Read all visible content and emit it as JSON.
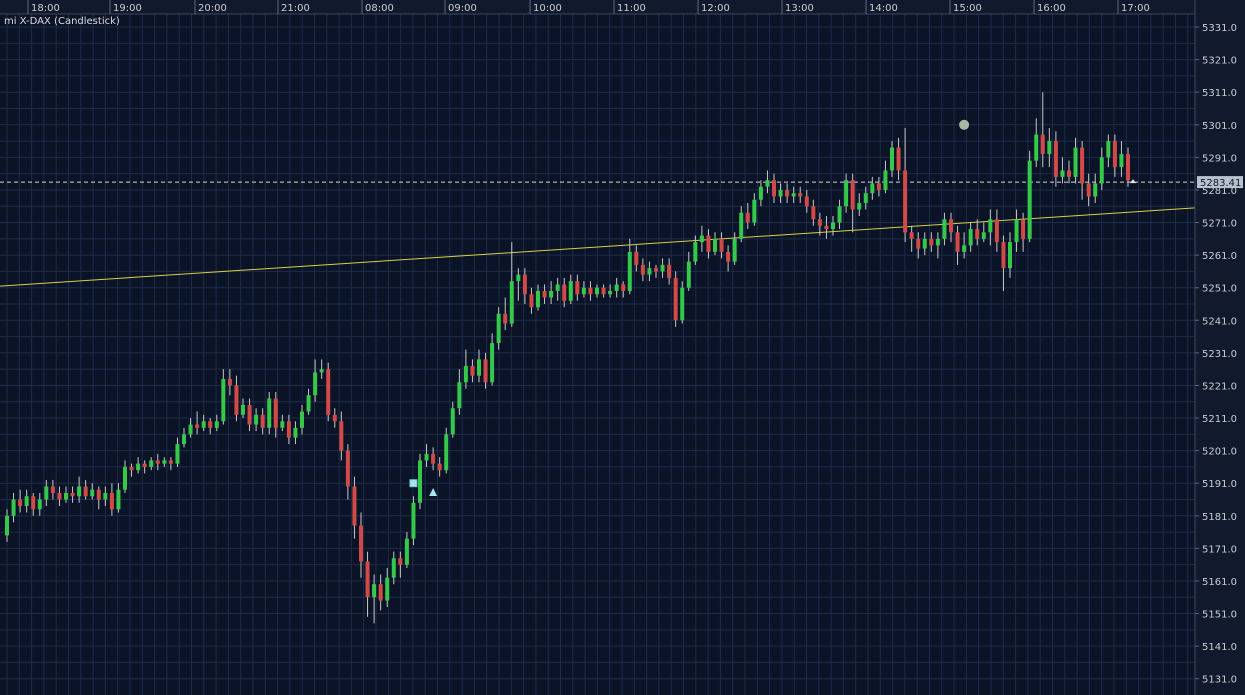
{
  "chart_title": "mi X-DAX (Candlestick)",
  "colors": {
    "background": "#0b1326",
    "grid": "#1d2c4b",
    "grid_major": "#22355a",
    "up": "#35c94a",
    "down": "#d24a47",
    "wick": "#c8c8c8",
    "trendline": "#d8d04a",
    "last_line": "#d8d8d8",
    "axis_bg": "#111a2d",
    "badge_bg": "#b7c3cf"
  },
  "chart_data": {
    "type": "candlestick",
    "symbol": "mi X-DAX",
    "time_ticks": [
      "18:00",
      "19:00",
      "20:00",
      "21:00",
      "08:00",
      "09:00",
      "10:00",
      "11:00",
      "12:00",
      "13:00",
      "14:00",
      "15:00",
      "16:00",
      "17:00"
    ],
    "price_ticks": [
      5331.0,
      5321.0,
      5311.0,
      5301.0,
      5291.0,
      5281.0,
      5271.0,
      5261.0,
      5251.0,
      5241.0,
      5231.0,
      5221.0,
      5211.0,
      5201.0,
      5191.0,
      5181.0,
      5171.0,
      5161.0,
      5151.0,
      5141.0,
      5131.0
    ],
    "ylim": [
      5126,
      5335
    ],
    "last_price": 5283.41,
    "trendline": {
      "start_price": 5251.5,
      "end_price": 5275.5
    },
    "markers": [
      {
        "type": "square",
        "bar": 62,
        "price": 5191
      },
      {
        "type": "triangle",
        "bar": 65,
        "price": 5188
      },
      {
        "type": "circle",
        "bar": 146,
        "price": 5301
      }
    ],
    "candles": [
      [
        5175,
        5181,
        5173,
        5183
      ],
      [
        5181,
        5186,
        5179,
        5188
      ],
      [
        5186,
        5184,
        5182,
        5189
      ],
      [
        5184,
        5187,
        5182,
        5189
      ],
      [
        5187,
        5183,
        5181,
        5188
      ],
      [
        5183,
        5186,
        5181,
        5188
      ],
      [
        5186,
        5190,
        5184,
        5192
      ],
      [
        5190,
        5188,
        5186,
        5192
      ],
      [
        5188,
        5186,
        5184,
        5190
      ],
      [
        5186,
        5188,
        5185,
        5190
      ],
      [
        5188,
        5187,
        5185,
        5190
      ],
      [
        5187,
        5190,
        5185,
        5193
      ],
      [
        5190,
        5187,
        5186,
        5192
      ],
      [
        5187,
        5189,
        5186,
        5191
      ],
      [
        5189,
        5186,
        5183,
        5190
      ],
      [
        5186,
        5188,
        5184,
        5190
      ],
      [
        5188,
        5183,
        5181,
        5191
      ],
      [
        5183,
        5189,
        5182,
        5191
      ],
      [
        5189,
        5196,
        5188,
        5198
      ],
      [
        5196,
        5195,
        5193,
        5197
      ],
      [
        5195,
        5197,
        5194,
        5199
      ],
      [
        5197,
        5196,
        5194,
        5198
      ],
      [
        5196,
        5198,
        5195,
        5199
      ],
      [
        5198,
        5197,
        5195,
        5200
      ],
      [
        5197,
        5198,
        5196,
        5199
      ],
      [
        5198,
        5197,
        5195,
        5199
      ],
      [
        5197,
        5203,
        5196,
        5205
      ],
      [
        5203,
        5206,
        5202,
        5208
      ],
      [
        5206,
        5209,
        5205,
        5211
      ],
      [
        5209,
        5208,
        5206,
        5213
      ],
      [
        5208,
        5210,
        5207,
        5212
      ],
      [
        5210,
        5208,
        5206,
        5211
      ],
      [
        5208,
        5210,
        5207,
        5212
      ],
      [
        5210,
        5223,
        5209,
        5226
      ],
      [
        5223,
        5221,
        5218,
        5226
      ],
      [
        5221,
        5212,
        5210,
        5224
      ],
      [
        5212,
        5215,
        5211,
        5217
      ],
      [
        5215,
        5209,
        5207,
        5217
      ],
      [
        5209,
        5212,
        5207,
        5214
      ],
      [
        5212,
        5208,
        5206,
        5214
      ],
      [
        5208,
        5217,
        5206,
        5219
      ],
      [
        5217,
        5208,
        5205,
        5219
      ],
      [
        5208,
        5210,
        5207,
        5212
      ],
      [
        5210,
        5205,
        5203,
        5212
      ],
      [
        5205,
        5208,
        5203,
        5210
      ],
      [
        5208,
        5213,
        5206,
        5215
      ],
      [
        5213,
        5218,
        5212,
        5220
      ],
      [
        5218,
        5225,
        5216,
        5229
      ],
      [
        5225,
        5226,
        5223,
        5229
      ],
      [
        5226,
        5212,
        5210,
        5228
      ],
      [
        5212,
        5210,
        5208,
        5214
      ],
      [
        5210,
        5201,
        5198,
        5213
      ],
      [
        5201,
        5190,
        5186,
        5203
      ],
      [
        5190,
        5178,
        5174,
        5193
      ],
      [
        5178,
        5167,
        5162,
        5182
      ],
      [
        5167,
        5156,
        5150,
        5170
      ],
      [
        5156,
        5160,
        5148,
        5163
      ],
      [
        5160,
        5155,
        5152,
        5163
      ],
      [
        5155,
        5162,
        5153,
        5165
      ],
      [
        5162,
        5168,
        5160,
        5170
      ],
      [
        5168,
        5166,
        5162,
        5170
      ],
      [
        5166,
        5174,
        5165,
        5176
      ],
      [
        5174,
        5185,
        5172,
        5187
      ],
      [
        5185,
        5198,
        5183,
        5200
      ],
      [
        5198,
        5200,
        5196,
        5203
      ],
      [
        5200,
        5197,
        5195,
        5202
      ],
      [
        5197,
        5195,
        5193,
        5199
      ],
      [
        5195,
        5206,
        5194,
        5208
      ],
      [
        5206,
        5214,
        5205,
        5216
      ],
      [
        5214,
        5222,
        5212,
        5226
      ],
      [
        5222,
        5227,
        5220,
        5232
      ],
      [
        5227,
        5224,
        5222,
        5229
      ],
      [
        5224,
        5229,
        5222,
        5232
      ],
      [
        5229,
        5222,
        5220,
        5231
      ],
      [
        5222,
        5234,
        5221,
        5237
      ],
      [
        5234,
        5243,
        5232,
        5245
      ],
      [
        5243,
        5240,
        5238,
        5248
      ],
      [
        5240,
        5253,
        5239,
        5265
      ],
      [
        5253,
        5255,
        5247,
        5257
      ],
      [
        5255,
        5249,
        5246,
        5257
      ],
      [
        5249,
        5245,
        5243,
        5251
      ],
      [
        5245,
        5250,
        5244,
        5252
      ],
      [
        5250,
        5248,
        5246,
        5252
      ],
      [
        5248,
        5250,
        5246,
        5253
      ],
      [
        5250,
        5252,
        5247,
        5254
      ],
      [
        5252,
        5247,
        5245,
        5254
      ],
      [
        5247,
        5253,
        5246,
        5255
      ],
      [
        5253,
        5249,
        5247,
        5255
      ],
      [
        5249,
        5251,
        5248,
        5253
      ],
      [
        5251,
        5249,
        5247,
        5253
      ],
      [
        5249,
        5251,
        5248,
        5252
      ],
      [
        5251,
        5249,
        5248,
        5252
      ],
      [
        5249,
        5250,
        5248,
        5252
      ],
      [
        5250,
        5252,
        5248,
        5254
      ],
      [
        5252,
        5250,
        5248,
        5253
      ],
      [
        5250,
        5262,
        5249,
        5266
      ],
      [
        5262,
        5258,
        5256,
        5264
      ],
      [
        5258,
        5255,
        5253,
        5260
      ],
      [
        5255,
        5257,
        5253,
        5259
      ],
      [
        5257,
        5256,
        5254,
        5258
      ],
      [
        5256,
        5258,
        5254,
        5260
      ],
      [
        5258,
        5254,
        5252,
        5260
      ],
      [
        5254,
        5241,
        5239,
        5256
      ],
      [
        5241,
        5251,
        5240,
        5253
      ],
      [
        5251,
        5259,
        5250,
        5262
      ],
      [
        5259,
        5265,
        5258,
        5267
      ],
      [
        5265,
        5267,
        5262,
        5270
      ],
      [
        5267,
        5262,
        5260,
        5269
      ],
      [
        5262,
        5266,
        5261,
        5268
      ],
      [
        5266,
        5262,
        5260,
        5268
      ],
      [
        5262,
        5259,
        5256,
        5264
      ],
      [
        5259,
        5266,
        5258,
        5268
      ],
      [
        5266,
        5274,
        5265,
        5276
      ],
      [
        5274,
        5271,
        5269,
        5277
      ],
      [
        5271,
        5278,
        5270,
        5280
      ],
      [
        5278,
        5282,
        5276,
        5284
      ],
      [
        5282,
        5284,
        5280,
        5287
      ],
      [
        5284,
        5279,
        5277,
        5286
      ],
      [
        5279,
        5281,
        5277,
        5283
      ],
      [
        5281,
        5279,
        5277,
        5283
      ],
      [
        5279,
        5280,
        5277,
        5282
      ],
      [
        5280,
        5279,
        5277,
        5282
      ],
      [
        5279,
        5276,
        5274,
        5281
      ],
      [
        5276,
        5272,
        5270,
        5278
      ],
      [
        5272,
        5270,
        5267,
        5274
      ],
      [
        5270,
        5269,
        5266,
        5273
      ],
      [
        5269,
        5271,
        5267,
        5273
      ],
      [
        5271,
        5276,
        5269,
        5278
      ],
      [
        5276,
        5284,
        5274,
        5286
      ],
      [
        5284,
        5275,
        5268,
        5286
      ],
      [
        5275,
        5277,
        5273,
        5280
      ],
      [
        5277,
        5280,
        5275,
        5282
      ],
      [
        5280,
        5283,
        5278,
        5285
      ],
      [
        5283,
        5281,
        5279,
        5285
      ],
      [
        5281,
        5287,
        5280,
        5290
      ],
      [
        5287,
        5294,
        5285,
        5296
      ],
      [
        5294,
        5287,
        5284,
        5297
      ],
      [
        5287,
        5268,
        5265,
        5300
      ],
      [
        5268,
        5266,
        5262,
        5270
      ],
      [
        5266,
        5263,
        5260,
        5268
      ],
      [
        5263,
        5266,
        5261,
        5268
      ],
      [
        5266,
        5264,
        5262,
        5268
      ],
      [
        5264,
        5266,
        5260,
        5268
      ],
      [
        5266,
        5272,
        5264,
        5274
      ],
      [
        5272,
        5268,
        5265,
        5274
      ],
      [
        5268,
        5262,
        5258,
        5270
      ],
      [
        5262,
        5264,
        5260,
        5268
      ],
      [
        5264,
        5269,
        5262,
        5271
      ],
      [
        5269,
        5266,
        5264,
        5272
      ],
      [
        5266,
        5268,
        5265,
        5271
      ],
      [
        5268,
        5272,
        5264,
        5275
      ],
      [
        5272,
        5265,
        5262,
        5275
      ],
      [
        5265,
        5257,
        5250,
        5267
      ],
      [
        5257,
        5265,
        5254,
        5268
      ],
      [
        5265,
        5272,
        5262,
        5275
      ],
      [
        5272,
        5266,
        5262,
        5274
      ],
      [
        5266,
        5290,
        5265,
        5293
      ],
      [
        5290,
        5298,
        5288,
        5303
      ],
      [
        5298,
        5292,
        5288,
        5311
      ],
      [
        5292,
        5296,
        5288,
        5300
      ],
      [
        5296,
        5285,
        5282,
        5299
      ],
      [
        5285,
        5287,
        5283,
        5291
      ],
      [
        5287,
        5285,
        5283,
        5290
      ],
      [
        5285,
        5294,
        5283,
        5297
      ],
      [
        5294,
        5283,
        5278,
        5296
      ],
      [
        5283,
        5279,
        5276,
        5286
      ],
      [
        5279,
        5283,
        5277,
        5286
      ],
      [
        5283,
        5291,
        5281,
        5294
      ],
      [
        5291,
        5296,
        5288,
        5298
      ],
      [
        5296,
        5288,
        5285,
        5298
      ],
      [
        5288,
        5292,
        5285,
        5296
      ],
      [
        5292,
        5284,
        5282,
        5294
      ]
    ]
  }
}
